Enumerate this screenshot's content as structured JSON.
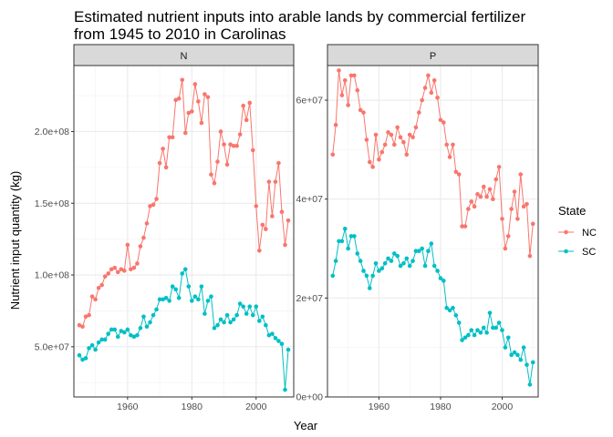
{
  "chart_data": {
    "type": "line",
    "title": "Estimated nutrient inputs into arable lands by commercial fertilizer from 1945 to 2010 in Carolinas",
    "title_lines": [
      "Estimated nutrient inputs into arable lands by commercial fertilizer",
      "from 1945 to 2010 in Carolinas"
    ],
    "xlabel": "Year",
    "ylabel": "Nutrient input quantity (kg)",
    "legend": {
      "title": "State",
      "position": "right",
      "entries": [
        "NC",
        "SC"
      ]
    },
    "colors": {
      "NC": "#F8766D",
      "SC": "#00BFC4"
    },
    "grid": true,
    "xlim": [
      1943.3,
      2011.7
    ],
    "xticks": [
      1960,
      1980,
      2000
    ],
    "xtick_labels": [
      "1960",
      "1980",
      "2000"
    ],
    "x": [
      1945,
      1946,
      1947,
      1948,
      1949,
      1950,
      1951,
      1952,
      1953,
      1954,
      1955,
      1956,
      1957,
      1958,
      1959,
      1960,
      1961,
      1962,
      1963,
      1964,
      1965,
      1966,
      1967,
      1968,
      1969,
      1970,
      1971,
      1972,
      1973,
      1974,
      1975,
      1976,
      1977,
      1978,
      1979,
      1980,
      1981,
      1982,
      1983,
      1984,
      1985,
      1986,
      1987,
      1988,
      1989,
      1990,
      1991,
      1992,
      1993,
      1994,
      1995,
      1996,
      1997,
      1998,
      1999,
      2000,
      2001,
      2002,
      2003,
      2004,
      2005,
      2006,
      2007,
      2008,
      2009,
      2010
    ],
    "panels": [
      {
        "strip": "N",
        "ylim": [
          15000000,
          246000000
        ],
        "yticks": [
          50000000,
          100000000,
          150000000,
          200000000
        ],
        "ytick_labels": [
          "5.0e+07",
          "1.0e+08",
          "1.5e+08",
          "2.0e+08"
        ],
        "series": [
          {
            "name": "NC",
            "values": [
              65000000,
              64000000,
              71000000,
              72000000,
              85000000,
              83000000,
              91000000,
              93000000,
              99000000,
              101000000,
              104000000,
              105000000,
              102000000,
              104000000,
              103000000,
              121000000,
              104000000,
              105000000,
              108000000,
              120000000,
              126000000,
              136000000,
              148000000,
              149000000,
              153000000,
              178000000,
              188000000,
              175000000,
              196000000,
              196000000,
              222000000,
              223000000,
              236000000,
              199000000,
              213000000,
              214000000,
              233000000,
              221000000,
              206000000,
              226000000,
              224000000,
              170000000,
              164000000,
              179000000,
              200000000,
              191000000,
              177000000,
              191000000,
              190000000,
              190000000,
              198000000,
              218000000,
              208000000,
              220000000,
              187000000,
              148000000,
              117000000,
              135000000,
              132000000,
              165000000,
              141000000,
              165000000,
              178000000,
              144000000,
              121000000,
              138000000
            ]
          },
          {
            "name": "SC",
            "values": [
              44000000,
              41000000,
              42000000,
              49000000,
              51000000,
              48000000,
              53000000,
              55000000,
              55000000,
              59000000,
              62000000,
              62000000,
              57000000,
              61000000,
              60000000,
              62000000,
              58000000,
              57000000,
              58000000,
              63000000,
              71000000,
              64000000,
              67000000,
              72000000,
              76000000,
              83000000,
              83000000,
              84000000,
              82000000,
              92000000,
              90000000,
              84000000,
              101000000,
              104000000,
              92000000,
              82000000,
              85000000,
              83000000,
              92000000,
              73000000,
              82000000,
              85000000,
              63000000,
              65000000,
              69000000,
              67000000,
              72000000,
              67000000,
              69000000,
              72000000,
              80000000,
              78000000,
              73000000,
              78000000,
              72000000,
              78000000,
              68000000,
              71000000,
              65000000,
              58000000,
              59000000,
              56000000,
              54000000,
              52000000,
              20000000,
              48000000
            ]
          }
        ]
      },
      {
        "strip": "P",
        "ylim": [
          0,
          67000000
        ],
        "yticks": [
          0,
          20000000,
          40000000,
          60000000
        ],
        "ytick_labels": [
          "0e+00",
          "2e+07",
          "4e+07",
          "6e+07"
        ],
        "series": [
          {
            "name": "NC",
            "values": [
              49000000,
              55000000,
              66000000,
              61000000,
              64000000,
              59000000,
              65000000,
              65000000,
              62000000,
              58000000,
              57500000,
              52000000,
              47500000,
              46500000,
              53000000,
              48000000,
              49500000,
              51000000,
              53500000,
              53000000,
              51000000,
              54500000,
              52500000,
              51500000,
              49000000,
              53000000,
              52500000,
              54500000,
              57500000,
              60000000,
              62500000,
              65000000,
              61500000,
              64000000,
              60500000,
              56000000,
              55500000,
              51000000,
              48500000,
              51000000,
              45500000,
              45000000,
              34500000,
              34500000,
              38000000,
              39500000,
              38500000,
              41000000,
              40500000,
              42500000,
              40500000,
              42000000,
              40000000,
              44000000,
              46500000,
              36000000,
              30000000,
              32500000,
              38000000,
              41500000,
              36000000,
              45000000,
              38500000,
              39000000,
              28500000,
              35000000
            ]
          },
          {
            "name": "SC",
            "values": [
              24500000,
              27500000,
              31500000,
              31500000,
              34000000,
              30000000,
              32500000,
              32500000,
              29000000,
              27500000,
              25500000,
              24500000,
              22000000,
              24500000,
              27000000,
              25500000,
              26000000,
              27000000,
              28000000,
              27500000,
              29000000,
              28500000,
              26500000,
              27000000,
              28000000,
              26500000,
              27500000,
              29500000,
              29500000,
              30000000,
              26500000,
              29500000,
              31000000,
              26500000,
              25500000,
              24000000,
              23500000,
              18000000,
              17500000,
              18000000,
              16500000,
              15000000,
              11500000,
              12000000,
              12500000,
              13500000,
              12500000,
              13500000,
              13000000,
              14000000,
              13000000,
              17000000,
              14000000,
              14000000,
              15000000,
              13500000,
              10000000,
              12000000,
              8500000,
              9000000,
              8500000,
              7500000,
              10000000,
              6500000,
              2500000,
              7000000
            ]
          }
        ]
      }
    ]
  }
}
